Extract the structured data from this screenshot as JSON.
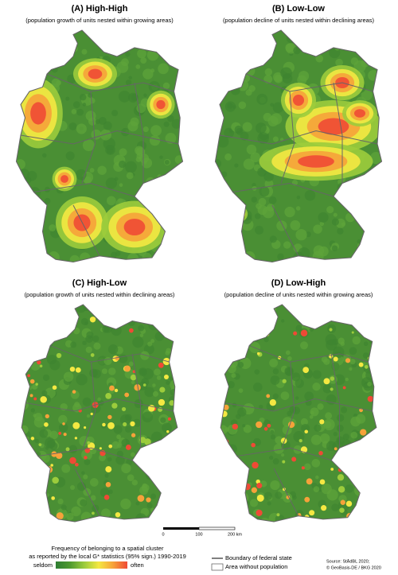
{
  "panels": [
    {
      "title": "(A) High-High",
      "subtitle": "(population growth of units nested within growing areas)"
    },
    {
      "title": "(B) Low-Low",
      "subtitle": "(population decline of units nested within declining areas)"
    },
    {
      "title": "(C) High-Low",
      "subtitle": "(population growth of units nested within declining areas)"
    },
    {
      "title": "(D) Low-High",
      "subtitle": "(population decline of units nested within growing areas)"
    }
  ],
  "scale_bar": {
    "labels": [
      "0",
      "100",
      "200 km"
    ]
  },
  "legend": {
    "title_lines": [
      "Frequency of belonging to a spatial cluster",
      "as reported by the local G* statistics (95% sign.) 1990-2019"
    ],
    "low": "seldom",
    "high": "often",
    "boundary": "Boundary of federal state",
    "no_population": "Area without population"
  },
  "source": [
    "Source: StÄdBL 2020;",
    "© GeoBasis-DE / BKG 2020"
  ]
}
